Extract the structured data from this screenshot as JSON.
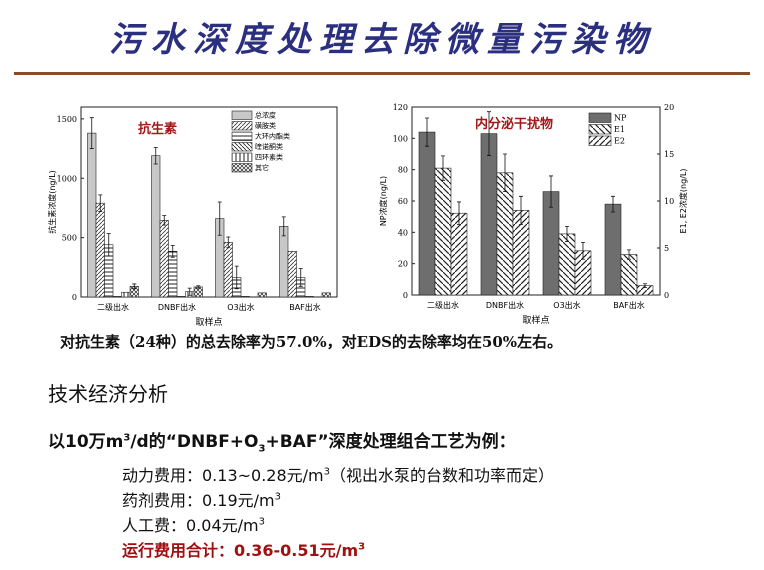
{
  "title": "污水深度处理去除微量污染物",
  "chart_data": [
    {
      "type": "bar",
      "annotation": "抗生素",
      "xlabel": "取样点",
      "ylabel": "抗生素浓度(ng/L)",
      "ylim": [
        0,
        1600
      ],
      "yticks": [
        0,
        500,
        1000,
        1500
      ],
      "categories": [
        "二级出水",
        "DNBF出水",
        "O3出水",
        "BAF出水"
      ],
      "legend_position": "top-right",
      "series": [
        {
          "name": "总浓度",
          "pattern": "solid-gray",
          "values": [
            1380,
            1190,
            660,
            595
          ],
          "errors": [
            130,
            70,
            140,
            80
          ]
        },
        {
          "name": "磺胺类",
          "pattern": "diag-dense",
          "values": [
            790,
            645,
            460,
            385
          ],
          "errors": [
            70,
            40,
            45,
            0
          ]
        },
        {
          "name": "大环内酯类",
          "pattern": "horizontal",
          "values": [
            440,
            385,
            165,
            165
          ],
          "errors": [
            95,
            50,
            95,
            75
          ]
        },
        {
          "name": "喹诺酮类",
          "pattern": "diag-back",
          "values": [
            5,
            5,
            5,
            5
          ],
          "errors": [
            0,
            0,
            0,
            0
          ]
        },
        {
          "name": "四环素类",
          "pattern": "vertical",
          "values": [
            40,
            45,
            0,
            0
          ],
          "errors": [
            0,
            30,
            0,
            0
          ]
        },
        {
          "name": "其它",
          "pattern": "cross",
          "values": [
            90,
            85,
            35,
            35
          ],
          "errors": [
            20,
            10,
            0,
            0
          ]
        }
      ]
    },
    {
      "type": "bar",
      "annotation": "内分泌干扰物",
      "xlabel": "取样点",
      "ylabel": "NP浓度(ng/L)",
      "ylabel_right": "E1, E2浓度(ng/L)",
      "ylim": [
        0,
        120
      ],
      "ylim_right": [
        0,
        20
      ],
      "yticks": [
        0,
        20,
        40,
        60,
        80,
        100,
        120
      ],
      "yticks_right": [
        0,
        5,
        10,
        15,
        20
      ],
      "categories": [
        "二级出水",
        "DNBF出水",
        "O3出水",
        "BAF出水"
      ],
      "legend_position": "top-right",
      "series": [
        {
          "name": "NP",
          "axis": "left",
          "pattern": "solid-dark",
          "values": [
            104,
            103,
            66,
            58
          ],
          "errors": [
            9,
            14,
            10,
            5
          ]
        },
        {
          "name": "E1",
          "axis": "right",
          "pattern": "diag-back",
          "values": [
            13.5,
            13,
            6.5,
            4.3
          ],
          "errors": [
            1.3,
            2,
            0.8,
            0.5
          ]
        },
        {
          "name": "E2",
          "axis": "right",
          "pattern": "diag",
          "values": [
            8.7,
            9,
            4.7,
            1.0
          ],
          "errors": [
            1.2,
            1.5,
            0.9,
            0.2
          ]
        }
      ]
    }
  ],
  "caption": "对抗生素（24种）的总去除率为57.0%，对EDS的去除率均在50%左右。",
  "section_heading": "技术经济分析",
  "example": {
    "prefix": "以10万m",
    "sup": "3",
    "mid": "/d的“DNBF+O",
    "sub": "3",
    "suffix": "+BAF”深度处理组合工艺为例："
  },
  "costs": [
    {
      "label": "动力费用：0.13~0.28元/m",
      "sup": "3",
      "note": "（视出水泵的台数和功率而定）"
    },
    {
      "label": "药剂费用：0.19元/m",
      "sup": "3",
      "note": ""
    },
    {
      "label": "人工费：0.04元/m",
      "sup": "3",
      "note": ""
    },
    {
      "label": "运行费用合计：0.36-0.51元/m",
      "sup": "3",
      "note": "",
      "highlight": "#a01010"
    }
  ]
}
